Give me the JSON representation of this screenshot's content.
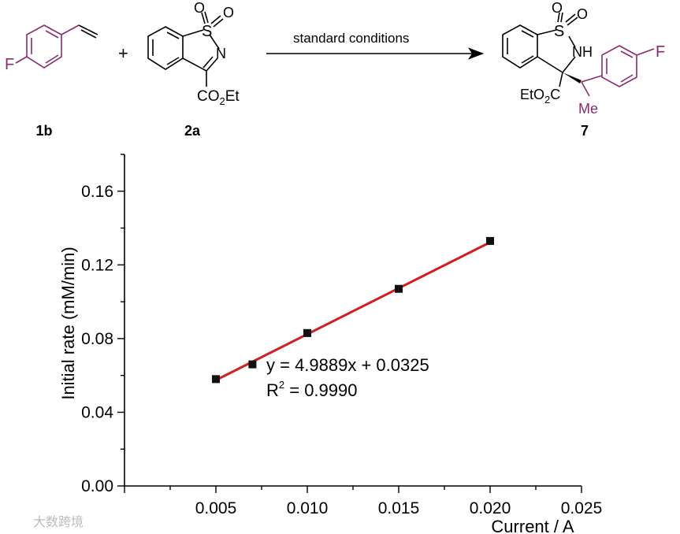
{
  "scheme": {
    "compound_1b": "1b",
    "compound_2a": "2a",
    "compound_7": "7",
    "plus": "+",
    "arrow_label": "standard conditions",
    "atoms": {
      "F": "F",
      "S": "S",
      "O": "O",
      "N": "N",
      "NH": "NH",
      "CO2Et_a": "CO",
      "CO2Et_b": "2",
      "CO2Et_c": "Et",
      "EtO2C_a": "EtO",
      "EtO2C_b": "2",
      "EtO2C_c": "C",
      "Me": "Me"
    },
    "colors": {
      "aryl": "#8b2a6e",
      "bond": "#000000"
    }
  },
  "chart_data": {
    "type": "scatter",
    "xlabel": "Current / A",
    "ylabel": "Initial rate (mM/min)",
    "xlim": [
      0.0,
      0.025
    ],
    "ylim": [
      0.0,
      0.18
    ],
    "xticks": [
      "0.005",
      "0.010",
      "0.015",
      "0.020",
      "0.025"
    ],
    "xtick_values": [
      0.005,
      0.01,
      0.015,
      0.02,
      0.025
    ],
    "yticks": [
      "0.00",
      "0.04",
      "0.08",
      "0.12",
      "0.16"
    ],
    "ytick_values": [
      0.0,
      0.04,
      0.08,
      0.12,
      0.16
    ],
    "grid": false,
    "series": [
      {
        "x": [
          0.005,
          0.007,
          0.01,
          0.015,
          0.02
        ],
        "y": [
          0.058,
          0.066,
          0.083,
          0.107,
          0.133
        ],
        "color": "#111111",
        "marker": "square"
      }
    ],
    "fit": {
      "slope": 4.9889,
      "intercept": 0.0325,
      "x_range": [
        0.005,
        0.02
      ],
      "color": "#d21e1e"
    },
    "annotations": {
      "equation": "y = 4.9889x + 0.0325",
      "r2_prefix": "R",
      "r2_sup": "2",
      "r2_value": " = 0.9990"
    }
  },
  "watermark": "大数跨境"
}
